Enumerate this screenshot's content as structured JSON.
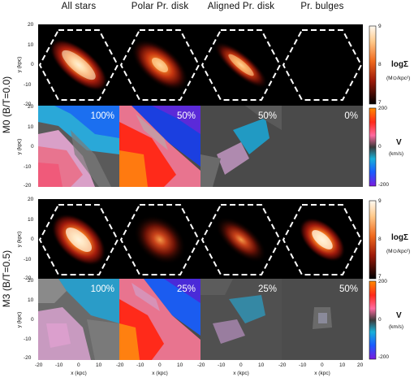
{
  "column_titles": [
    "All stars",
    "Polar Pr. disk",
    "Aligned Pr. disk",
    "Pr. bulges"
  ],
  "row_labels": {
    "m0": "M0 (B/T=0.0)",
    "m3": "M3 (B/T=0.5)"
  },
  "fractions": {
    "m0": [
      "100%",
      "50%",
      "50%",
      "0%"
    ],
    "m3": [
      "100%",
      "25%",
      "25%",
      "50%"
    ]
  },
  "axes": {
    "y_label": "y (kpc)",
    "x_label": "x (kpc)",
    "y_ticks": [
      "20",
      "10",
      "0",
      "-10",
      "-20"
    ],
    "x_ticks": [
      "-20",
      "-10",
      "0",
      "10",
      "20"
    ]
  },
  "colorbar_density": {
    "title": "logΣ",
    "unit": "(M⊙/kpc²)",
    "ticks": [
      "9",
      "8",
      "7"
    ]
  },
  "colorbar_velocity": {
    "title": "V",
    "unit": "(km/s)",
    "ticks": [
      "200",
      "0",
      "-200"
    ]
  }
}
